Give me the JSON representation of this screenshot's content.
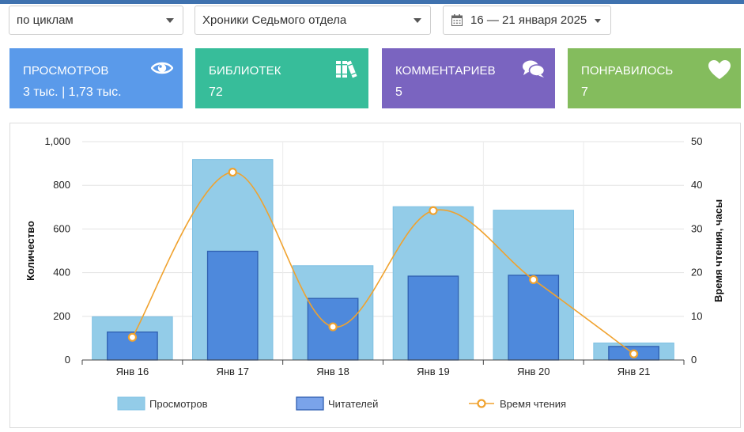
{
  "filters": {
    "cycle": "по циклам",
    "book": "Хроники Седьмого отдела",
    "date_range": "16 — 21 января 2025"
  },
  "cards": [
    {
      "label": "ПРОСМОТРОВ",
      "value": "3 тыс. | 1,73 тыс.",
      "icon": "eye-icon",
      "color": "#5a9aea"
    },
    {
      "label": "БИБЛИОТЕК",
      "value": "72",
      "icon": "books-icon",
      "color": "#37bd9a"
    },
    {
      "label": "КОММЕНТАРИЕВ",
      "value": "5",
      "icon": "comments-icon",
      "color": "#7a64c0"
    },
    {
      "label": "ПОНРАВИЛОСЬ",
      "value": "7",
      "icon": "heart-icon",
      "color": "#84bc5d"
    }
  ],
  "chart_data": {
    "type": "bar",
    "categories": [
      "Янв 16",
      "Янв 17",
      "Янв 18",
      "Янв 19",
      "Янв 20",
      "Янв 21"
    ],
    "series": [
      {
        "name": "Просмотров",
        "type": "bar",
        "axis": "left",
        "values": [
          198,
          918,
          432,
          702,
          686,
          78
        ],
        "color": "#93cce8"
      },
      {
        "name": "Читателей",
        "type": "bar",
        "axis": "left",
        "values": [
          128,
          498,
          282,
          384,
          388,
          62
        ],
        "color": "#4e89dc"
      },
      {
        "name": "Время чтения",
        "type": "line",
        "axis": "right",
        "smooth": true,
        "values": [
          5.2,
          43,
          7.6,
          34.2,
          18.4,
          1.4
        ],
        "color": "#f0a22e"
      }
    ],
    "ylabel": "Количество",
    "y2label": "Время чтения, часы",
    "ylim": [
      0,
      1000
    ],
    "y2lim": [
      0,
      50
    ],
    "yticks": [
      "0",
      "200",
      "400",
      "600",
      "800",
      "1,000"
    ],
    "y2ticks": [
      "0",
      "10",
      "20",
      "30",
      "40",
      "50"
    ],
    "grid": true,
    "legend": "bottom"
  }
}
